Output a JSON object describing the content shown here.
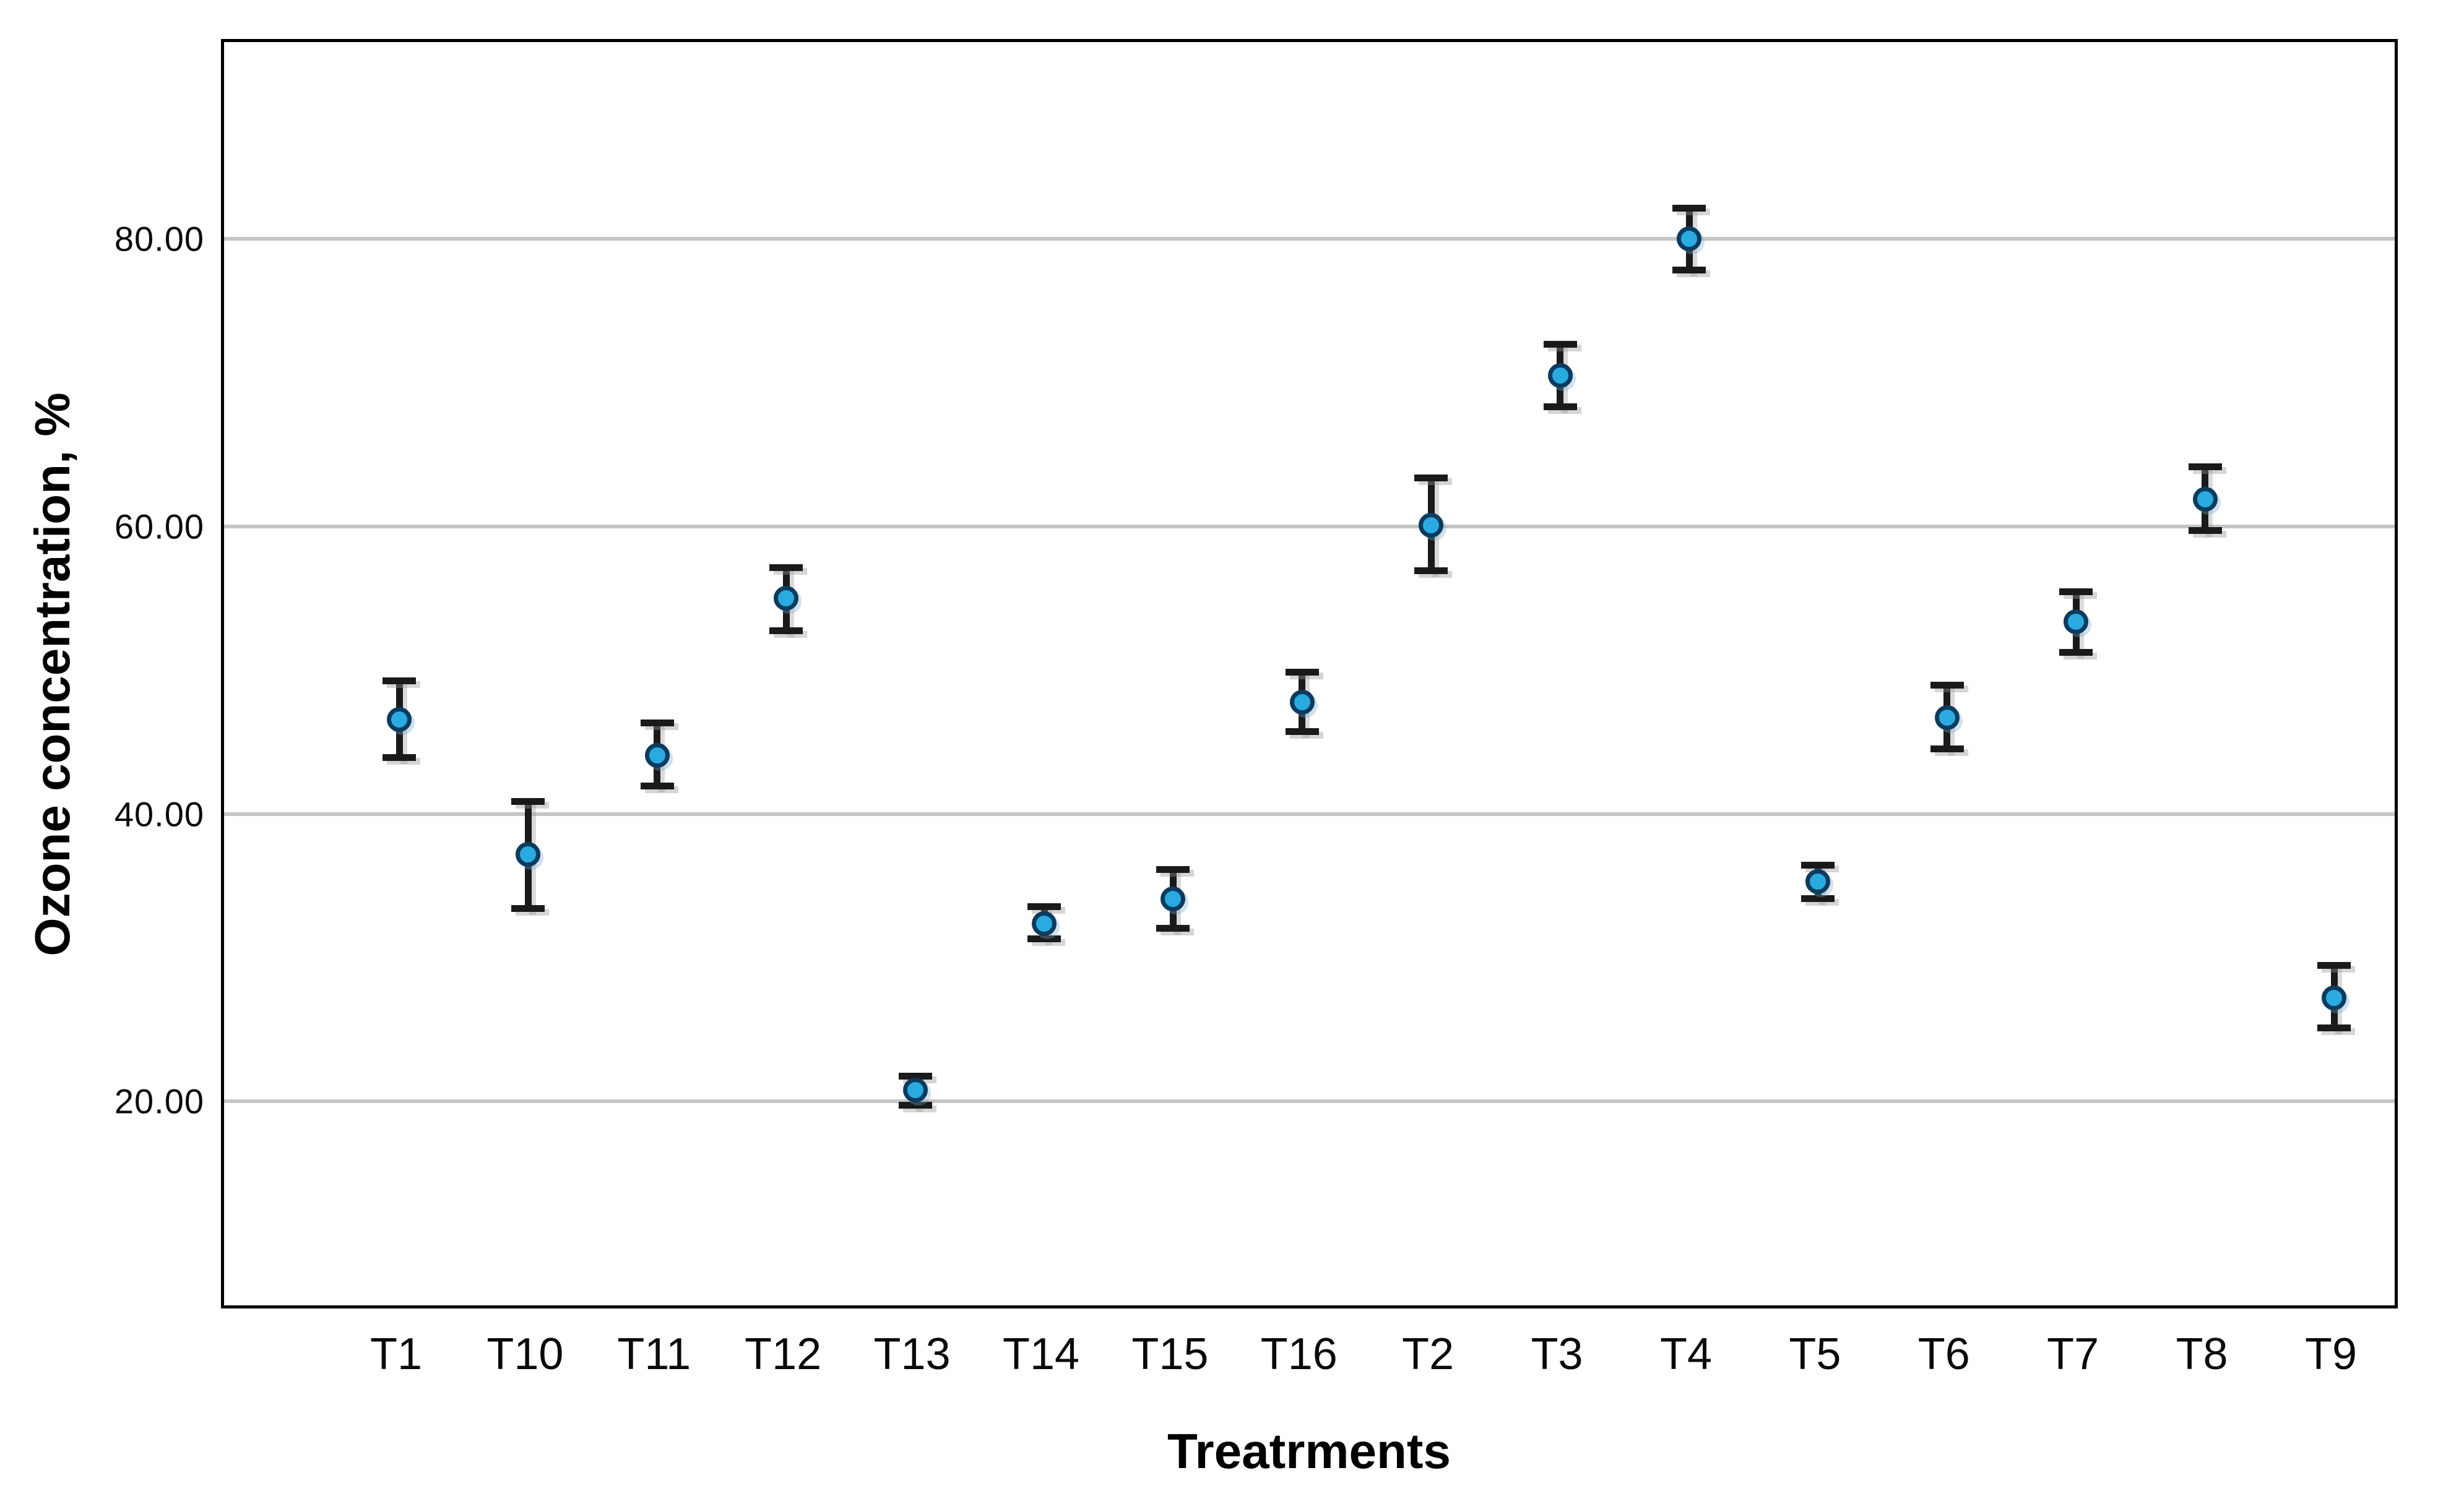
{
  "chart_data": {
    "type": "scatter",
    "subtype": "error-bar-means",
    "title": "",
    "xlabel": "Treatrments",
    "ylabel": "Ozone concentration, %",
    "categories": [
      "T1",
      "T10",
      "T11",
      "T12",
      "T13",
      "T14",
      "T15",
      "T16",
      "T2",
      "T3",
      "T4",
      "T5",
      "T6",
      "T7",
      "T8",
      "T9"
    ],
    "series": [
      {
        "name": "Ozone concentration, %",
        "points": [
          {
            "category": "T1",
            "mean": 46.8,
            "lower": 43.9,
            "upper": 49.7
          },
          {
            "category": "T10",
            "mean": 37.4,
            "lower": 33.4,
            "upper": 41.3
          },
          {
            "category": "T11",
            "mean": 44.3,
            "lower": 41.9,
            "upper": 46.8
          },
          {
            "category": "T12",
            "mean": 55.2,
            "lower": 52.7,
            "upper": 57.6
          },
          {
            "category": "T13",
            "mean": 21.0,
            "lower": 19.7,
            "upper": 22.2
          },
          {
            "category": "T14",
            "mean": 32.6,
            "lower": 31.3,
            "upper": 34.0
          },
          {
            "category": "T15",
            "mean": 34.3,
            "lower": 32.0,
            "upper": 36.6
          },
          {
            "category": "T16",
            "mean": 48.0,
            "lower": 45.7,
            "upper": 50.3
          },
          {
            "category": "T2",
            "mean": 60.3,
            "lower": 56.9,
            "upper": 63.8
          },
          {
            "category": "T3",
            "mean": 70.7,
            "lower": 68.3,
            "upper": 73.1
          },
          {
            "category": "T4",
            "mean": 80.2,
            "lower": 77.8,
            "upper": 82.6
          },
          {
            "category": "T5",
            "mean": 35.5,
            "lower": 34.1,
            "upper": 36.9
          },
          {
            "category": "T6",
            "mean": 46.9,
            "lower": 44.5,
            "upper": 49.4
          },
          {
            "category": "T7",
            "mean": 53.6,
            "lower": 51.2,
            "upper": 55.9
          },
          {
            "category": "T8",
            "mean": 62.1,
            "lower": 59.7,
            "upper": 64.6
          },
          {
            "category": "T9",
            "mean": 27.4,
            "lower": 25.1,
            "upper": 29.9
          }
        ]
      }
    ],
    "ylim": [
      5.6,
      93.9
    ],
    "yticks": [
      {
        "value": 20,
        "label": "20.00"
      },
      {
        "value": 40,
        "label": "40.00"
      },
      {
        "value": 60,
        "label": "60.00"
      },
      {
        "value": 80,
        "label": "80.00"
      }
    ],
    "grid": "horizontal-only",
    "legend": "none",
    "colors": {
      "marker_fill": "#29ABE2",
      "marker_edge": "#0C3B5E",
      "whisker": "#1A1A1A",
      "gridline": "#C5C5C5",
      "frame": "#000000",
      "background": "#FFFFFF"
    }
  }
}
